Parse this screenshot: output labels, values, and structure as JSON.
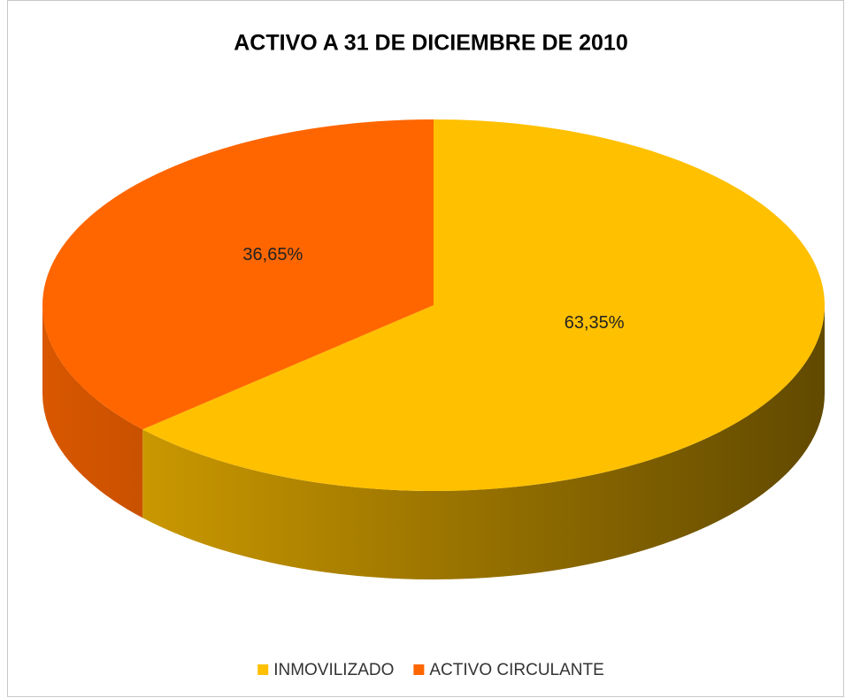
{
  "chart_data": {
    "type": "pie3d",
    "title": "ACTIVO A 31 DE DICIEMBRE DE 2010",
    "categories": [
      "INMOVILIZADO",
      "ACTIVO CIRCULANTE"
    ],
    "values": [
      63.35,
      36.65
    ],
    "value_labels": [
      "63,35%",
      "36,65%"
    ],
    "colors": [
      "#FFC000",
      "#FF6600"
    ],
    "legend": "bottom"
  }
}
